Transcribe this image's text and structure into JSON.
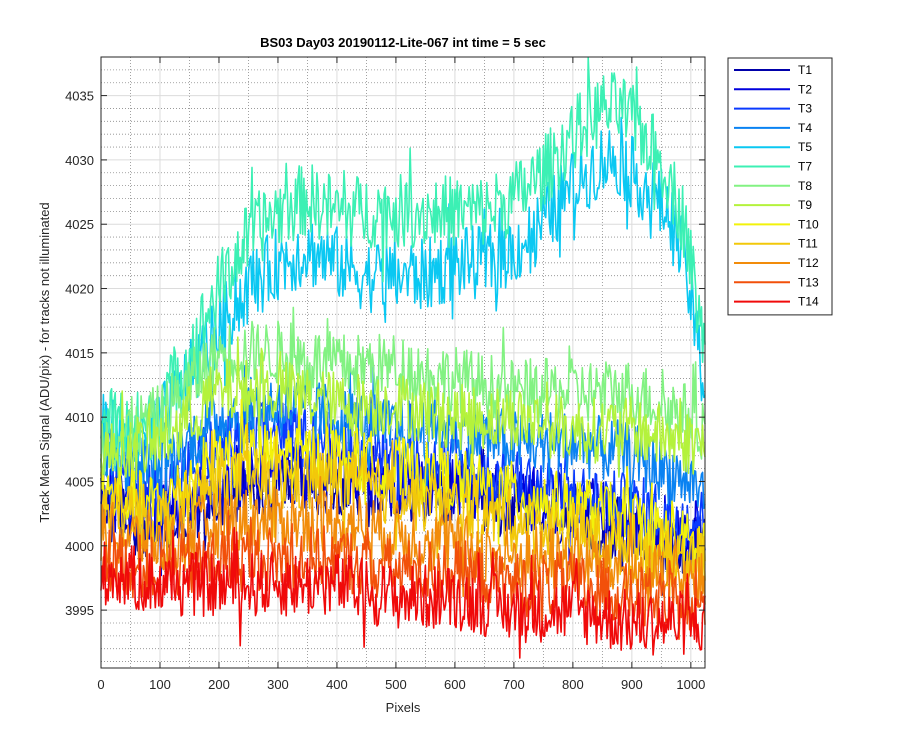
{
  "chart_data": {
    "type": "line",
    "title": "BS03 Day03 20190112-Lite-067 int time = 5 sec",
    "xlabel": "Pixels",
    "ylabel": "Track Mean Signal (ADU/pix) - for tracks not illuminated",
    "xlim": [
      0,
      1024
    ],
    "ylim": [
      3990.5,
      4038
    ],
    "x_ticks": [
      0,
      100,
      200,
      300,
      400,
      500,
      600,
      700,
      800,
      900,
      1000
    ],
    "y_ticks": [
      3995,
      4000,
      4005,
      4010,
      4015,
      4020,
      4025,
      4030,
      4035
    ],
    "y_minor_step": 1,
    "grid": true,
    "minor_grid": true,
    "legend_position": "outside-top-right",
    "series": [
      {
        "name": "T1",
        "color": "#0000AA",
        "noise": 1.6,
        "points": [
          [
            0,
            4003
          ],
          [
            100,
            4001
          ],
          [
            200,
            4004
          ],
          [
            300,
            4005
          ],
          [
            400,
            4005
          ],
          [
            500,
            4004
          ],
          [
            600,
            4004
          ],
          [
            700,
            4003
          ],
          [
            800,
            4002
          ],
          [
            900,
            4001
          ],
          [
            1000,
            4000
          ],
          [
            1024,
            4000
          ]
        ]
      },
      {
        "name": "T2",
        "color": "#0000DD",
        "noise": 1.6,
        "points": [
          [
            0,
            4004
          ],
          [
            100,
            4002
          ],
          [
            200,
            4005
          ],
          [
            300,
            4006
          ],
          [
            400,
            4006
          ],
          [
            500,
            4005
          ],
          [
            600,
            4005
          ],
          [
            700,
            4004
          ],
          [
            800,
            4003
          ],
          [
            900,
            4002
          ],
          [
            1000,
            4001
          ],
          [
            1024,
            4001
          ]
        ]
      },
      {
        "name": "T3",
        "color": "#0A3AFF",
        "noise": 1.6,
        "points": [
          [
            0,
            4006
          ],
          [
            100,
            4004
          ],
          [
            200,
            4008
          ],
          [
            300,
            4009
          ],
          [
            400,
            4008
          ],
          [
            500,
            4007
          ],
          [
            600,
            4006
          ],
          [
            700,
            4005
          ],
          [
            800,
            4004
          ],
          [
            900,
            4003
          ],
          [
            1000,
            4002
          ],
          [
            1024,
            4002
          ]
        ]
      },
      {
        "name": "T4",
        "color": "#0A82F2",
        "noise": 1.6,
        "points": [
          [
            0,
            4007
          ],
          [
            100,
            4006
          ],
          [
            200,
            4010
          ],
          [
            300,
            4011
          ],
          [
            400,
            4010
          ],
          [
            500,
            4009
          ],
          [
            600,
            4009
          ],
          [
            700,
            4008
          ],
          [
            800,
            4008
          ],
          [
            900,
            4007
          ],
          [
            1000,
            4005
          ],
          [
            1024,
            4004
          ]
        ]
      },
      {
        "name": "T5",
        "color": "#0AC8F2",
        "noise": 1.8,
        "points": [
          [
            0,
            4009
          ],
          [
            80,
            4008
          ],
          [
            150,
            4013
          ],
          [
            200,
            4017
          ],
          [
            250,
            4020
          ],
          [
            300,
            4022
          ],
          [
            350,
            4023
          ],
          [
            400,
            4022
          ],
          [
            450,
            4021
          ],
          [
            500,
            4021
          ],
          [
            550,
            4021
          ],
          [
            600,
            4022
          ],
          [
            650,
            4022
          ],
          [
            700,
            4023
          ],
          [
            750,
            4025
          ],
          [
            800,
            4028
          ],
          [
            850,
            4030
          ],
          [
            880,
            4030
          ],
          [
            920,
            4028
          ],
          [
            960,
            4026
          ],
          [
            990,
            4022
          ],
          [
            1010,
            4016
          ],
          [
            1024,
            4012
          ]
        ]
      },
      {
        "name": "T7",
        "color": "#3CF0B4",
        "noise": 1.8,
        "points": [
          [
            0,
            4010
          ],
          [
            80,
            4009
          ],
          [
            150,
            4015
          ],
          [
            200,
            4020
          ],
          [
            250,
            4024
          ],
          [
            300,
            4026
          ],
          [
            350,
            4027
          ],
          [
            400,
            4026
          ],
          [
            450,
            4026
          ],
          [
            500,
            4026
          ],
          [
            550,
            4026
          ],
          [
            600,
            4026
          ],
          [
            650,
            4026
          ],
          [
            700,
            4027
          ],
          [
            750,
            4029
          ],
          [
            800,
            4032
          ],
          [
            850,
            4034
          ],
          [
            880,
            4034
          ],
          [
            920,
            4032
          ],
          [
            960,
            4029
          ],
          [
            990,
            4025
          ],
          [
            1010,
            4019
          ],
          [
            1024,
            4015
          ]
        ]
      },
      {
        "name": "T8",
        "color": "#82F282",
        "noise": 1.6,
        "points": [
          [
            0,
            4008
          ],
          [
            100,
            4010
          ],
          [
            200,
            4015
          ],
          [
            300,
            4015
          ],
          [
            400,
            4014
          ],
          [
            500,
            4014
          ],
          [
            600,
            4013
          ],
          [
            700,
            4012
          ],
          [
            800,
            4012
          ],
          [
            900,
            4012
          ],
          [
            1000,
            4010
          ],
          [
            1024,
            4009
          ]
        ]
      },
      {
        "name": "T9",
        "color": "#B4F23C",
        "noise": 1.6,
        "points": [
          [
            0,
            4007
          ],
          [
            100,
            4008
          ],
          [
            200,
            4012
          ],
          [
            300,
            4012
          ],
          [
            400,
            4011
          ],
          [
            500,
            4011
          ],
          [
            600,
            4010
          ],
          [
            700,
            4010
          ],
          [
            800,
            4009
          ],
          [
            900,
            4009
          ],
          [
            1000,
            4008
          ],
          [
            1024,
            4008
          ]
        ]
      },
      {
        "name": "T10",
        "color": "#F2F20A",
        "noise": 1.6,
        "points": [
          [
            0,
            4004
          ],
          [
            100,
            4003
          ],
          [
            200,
            4007
          ],
          [
            300,
            4007
          ],
          [
            400,
            4007
          ],
          [
            500,
            4006
          ],
          [
            600,
            4005
          ],
          [
            700,
            4004
          ],
          [
            800,
            4003
          ],
          [
            900,
            4002
          ],
          [
            1000,
            4000
          ],
          [
            1024,
            4000
          ]
        ]
      },
      {
        "name": "T11",
        "color": "#F2C80A",
        "noise": 1.6,
        "points": [
          [
            0,
            4003
          ],
          [
            100,
            4002
          ],
          [
            200,
            4005
          ],
          [
            300,
            4005
          ],
          [
            400,
            4005
          ],
          [
            500,
            4004
          ],
          [
            600,
            4003
          ],
          [
            700,
            4002
          ],
          [
            800,
            4001
          ],
          [
            900,
            4000
          ],
          [
            1000,
            3999
          ],
          [
            1024,
            3999
          ]
        ]
      },
      {
        "name": "T12",
        "color": "#F28C0A",
        "noise": 1.6,
        "points": [
          [
            0,
            4001
          ],
          [
            100,
            4000
          ],
          [
            200,
            4002
          ],
          [
            300,
            4002
          ],
          [
            400,
            4002
          ],
          [
            500,
            4001
          ],
          [
            600,
            4000
          ],
          [
            700,
            3999
          ],
          [
            800,
            3999
          ],
          [
            900,
            3998
          ],
          [
            1000,
            3997
          ],
          [
            1024,
            3997
          ]
        ]
      },
      {
        "name": "T13",
        "color": "#F2500A",
        "noise": 1.6,
        "points": [
          [
            0,
            3999
          ],
          [
            100,
            3998
          ],
          [
            200,
            3999
          ],
          [
            300,
            3999
          ],
          [
            400,
            3999
          ],
          [
            500,
            3998
          ],
          [
            600,
            3998
          ],
          [
            700,
            3997
          ],
          [
            800,
            3997
          ],
          [
            900,
            3996
          ],
          [
            1000,
            3995
          ],
          [
            1024,
            3995
          ]
        ]
      },
      {
        "name": "T14",
        "color": "#F00A0A",
        "noise": 1.6,
        "points": [
          [
            0,
            3998
          ],
          [
            100,
            3997
          ],
          [
            200,
            3997
          ],
          [
            300,
            3997
          ],
          [
            400,
            3997
          ],
          [
            500,
            3996
          ],
          [
            600,
            3996
          ],
          [
            700,
            3995
          ],
          [
            800,
            3995
          ],
          [
            900,
            3994
          ],
          [
            1000,
            3994
          ],
          [
            1024,
            3994
          ]
        ]
      }
    ]
  }
}
